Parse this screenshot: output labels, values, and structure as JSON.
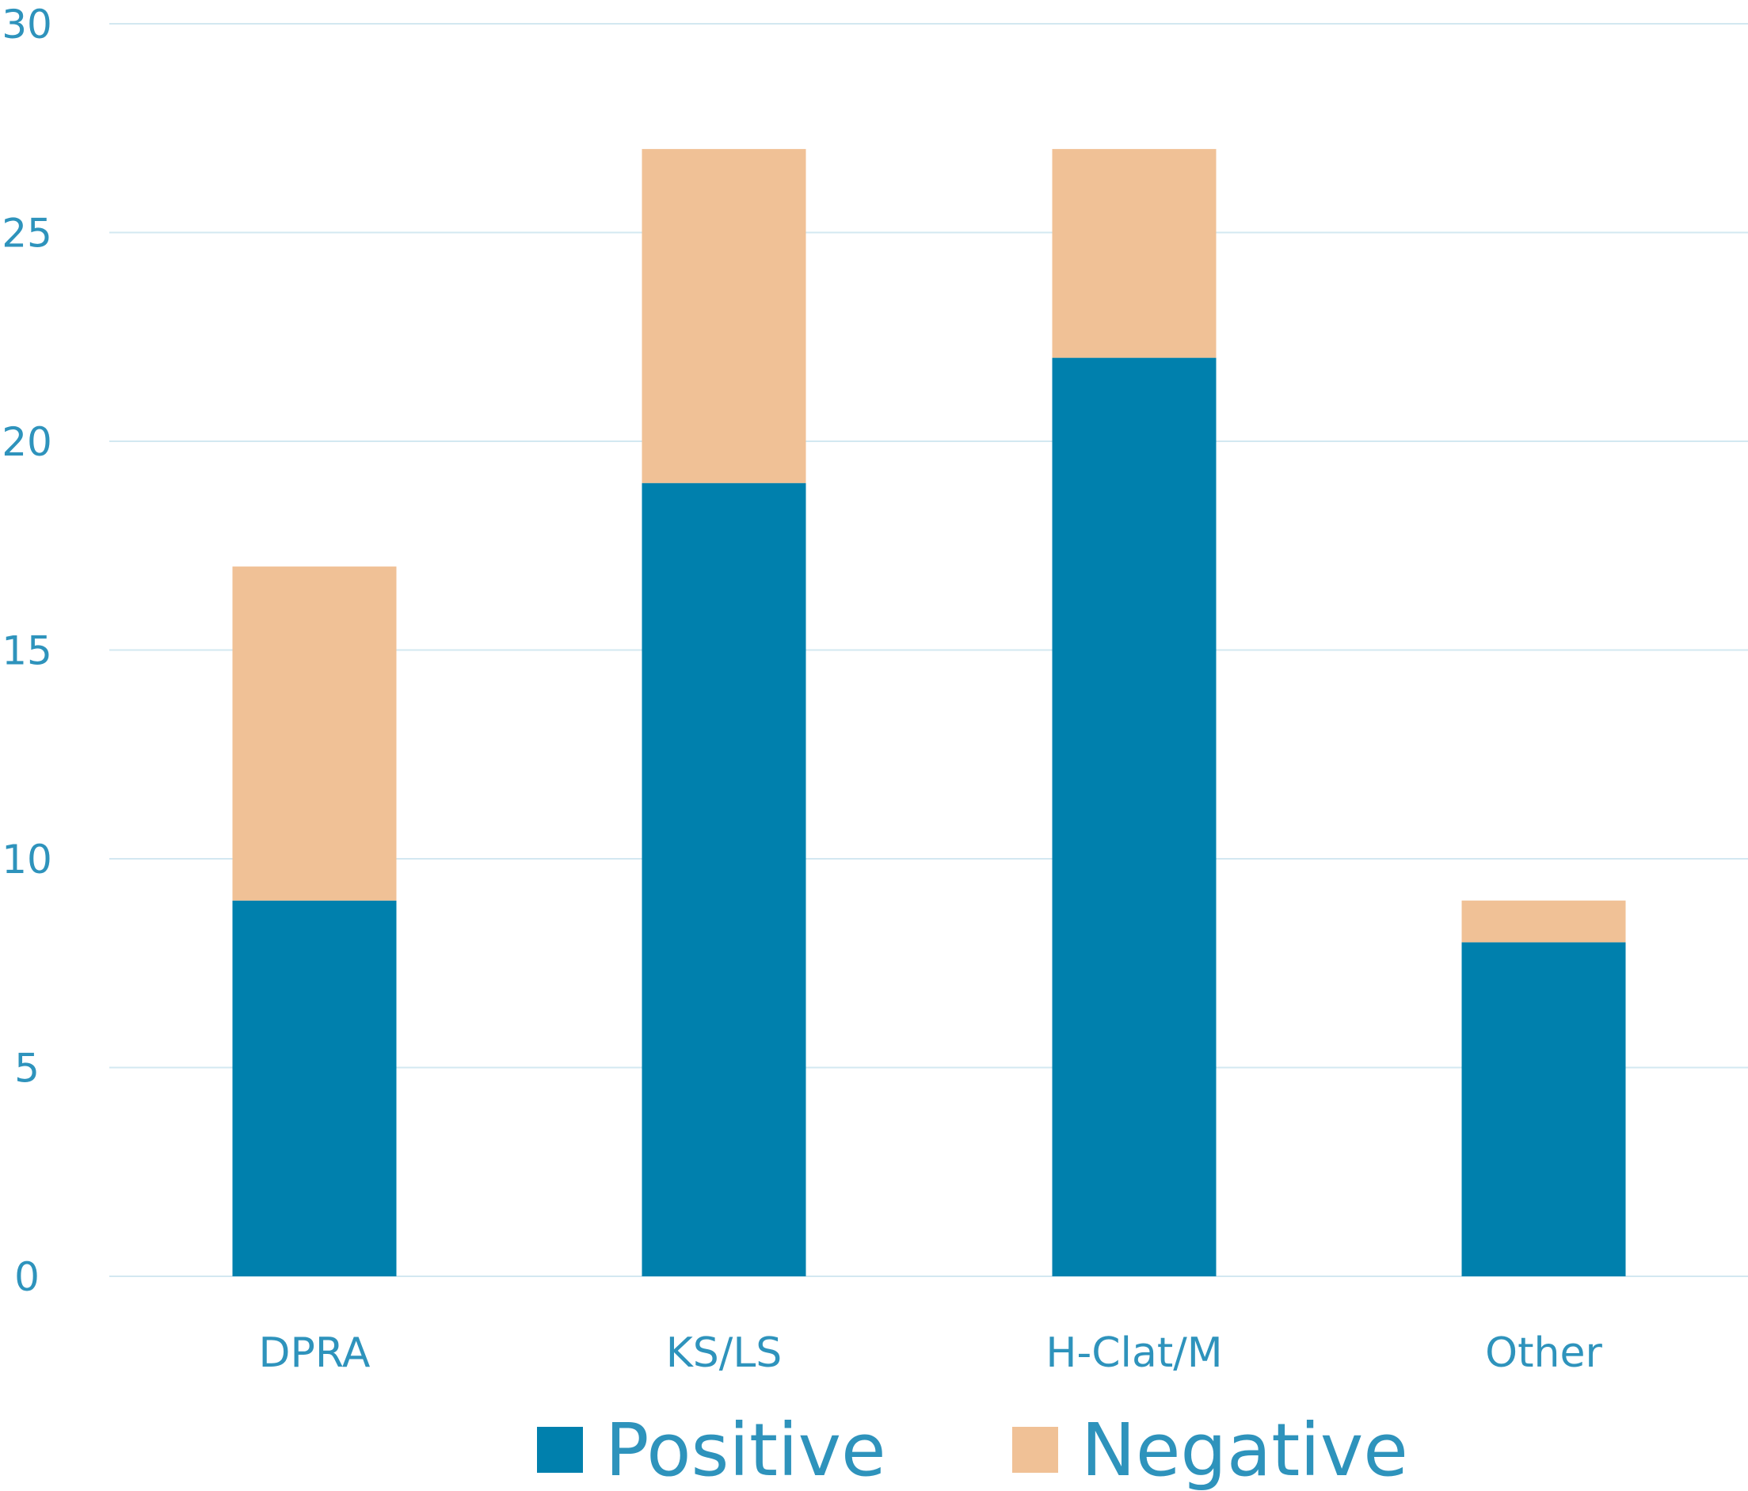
{
  "chart_data": {
    "type": "bar",
    "stacked": true,
    "categories": [
      "DPRA",
      "KS/LS",
      "H-Clat/M",
      "Other"
    ],
    "series": [
      {
        "name": "Positive",
        "values": [
          9,
          19,
          22,
          8
        ],
        "color": "#0080ad"
      },
      {
        "name": "Negative",
        "values": [
          8,
          8,
          5,
          1
        ],
        "color": "#f0c196"
      }
    ],
    "title": "",
    "xlabel": "",
    "ylabel": "",
    "ylim": [
      0,
      30
    ],
    "yticks": [
      "0",
      "5",
      "10",
      "15",
      "20",
      "25",
      "30"
    ],
    "grid": true,
    "legend": "bottom-center",
    "colors": {
      "text": "#2e93bc",
      "grid": "#d3e8f1"
    }
  }
}
